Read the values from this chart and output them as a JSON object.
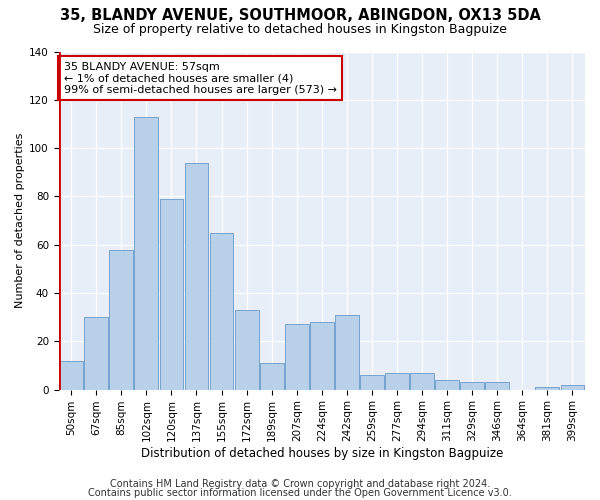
{
  "title1": "35, BLANDY AVENUE, SOUTHMOOR, ABINGDON, OX13 5DA",
  "title2": "Size of property relative to detached houses in Kingston Bagpuize",
  "xlabel": "Distribution of detached houses by size in Kingston Bagpuize",
  "ylabel": "Number of detached properties",
  "footer1": "Contains HM Land Registry data © Crown copyright and database right 2024.",
  "footer2": "Contains public sector information licensed under the Open Government Licence v3.0.",
  "annotation_line1": "35 BLANDY AVENUE: 57sqm",
  "annotation_line2": "← 1% of detached houses are smaller (4)",
  "annotation_line3": "99% of semi-detached houses are larger (573) →",
  "bar_color": "#b8d0e8",
  "bar_edge_color": "#6699cc",
  "highlight_color": "#cc0000",
  "background_color": "#e8eef8",
  "grid_color": "#ffffff",
  "categories": [
    "50sqm",
    "67sqm",
    "85sqm",
    "102sqm",
    "120sqm",
    "137sqm",
    "155sqm",
    "172sqm",
    "189sqm",
    "207sqm",
    "224sqm",
    "242sqm",
    "259sqm",
    "277sqm",
    "294sqm",
    "311sqm",
    "329sqm",
    "346sqm",
    "364sqm",
    "381sqm",
    "399sqm"
  ],
  "values": [
    12,
    30,
    58,
    113,
    79,
    94,
    65,
    33,
    11,
    27,
    28,
    31,
    6,
    7,
    7,
    4,
    3,
    3,
    0,
    1,
    2
  ],
  "highlight_bar_index": 0,
  "ylim": [
    0,
    140
  ],
  "yticks": [
    0,
    20,
    40,
    60,
    80,
    100,
    120,
    140
  ],
  "title1_fontsize": 10.5,
  "title2_fontsize": 9,
  "xlabel_fontsize": 8.5,
  "ylabel_fontsize": 8,
  "tick_fontsize": 7.5,
  "footer_fontsize": 7,
  "ann_fontsize": 8
}
